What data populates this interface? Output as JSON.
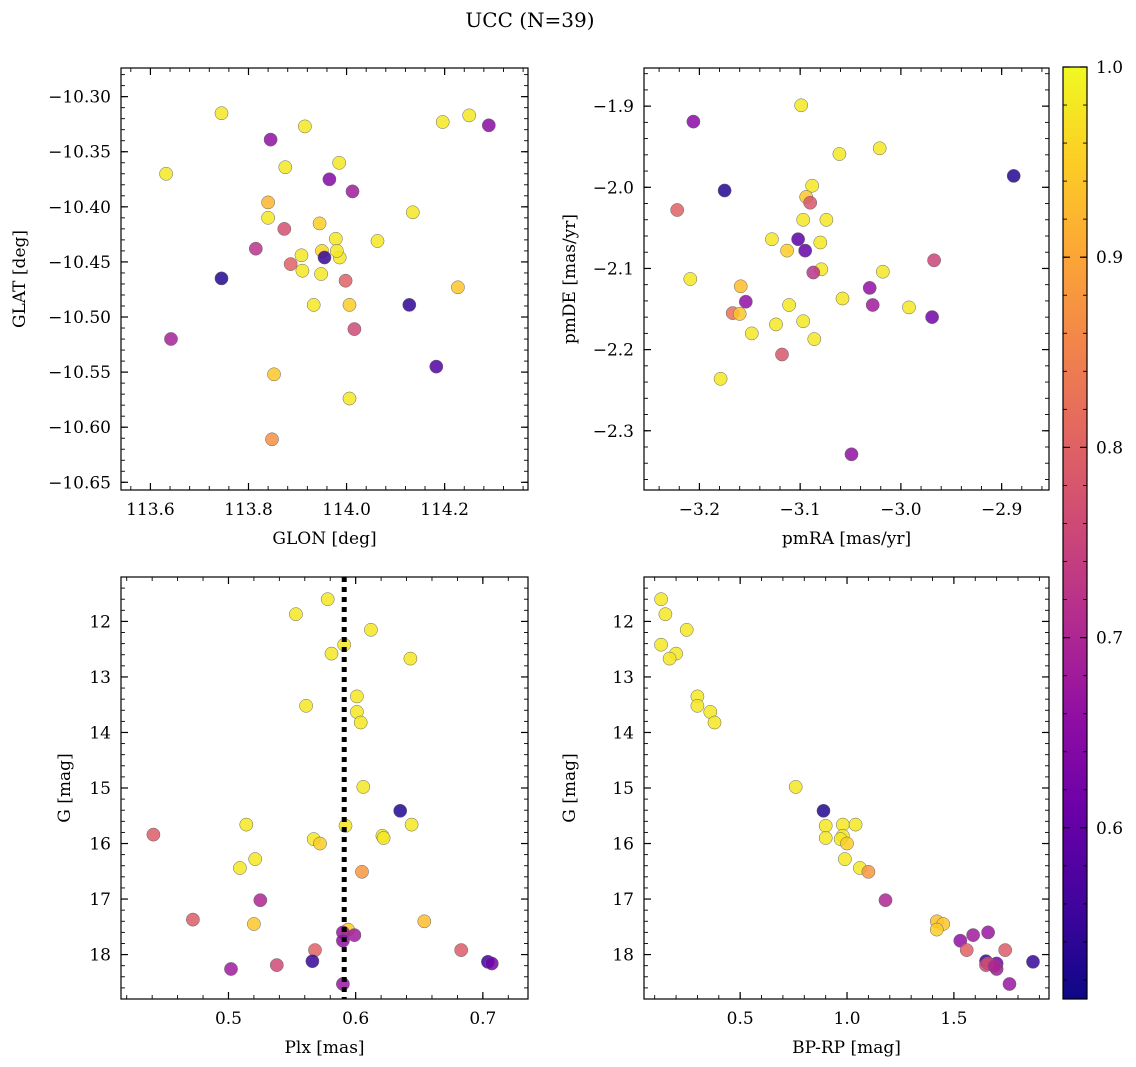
{
  "title": "UCC (N=39)",
  "colormap": {
    "name": "plasma",
    "min": 0.51,
    "max": 1.0,
    "ticks": [
      0.6,
      0.7,
      0.8,
      0.9,
      1.0
    ],
    "tick_labels": [
      "0.6",
      "0.7",
      "0.8",
      "0.9",
      "1.0"
    ]
  },
  "chart_data": [
    {
      "type": "scatter",
      "xlabel": "GLON [deg]",
      "ylabel": "GLAT [deg]",
      "xlim": [
        113.54,
        114.37
      ],
      "ylim": [
        -10.657,
        -10.274
      ],
      "y_inverted": false,
      "xticks": [
        113.6,
        113.8,
        114.0,
        114.2
      ],
      "xtick_labels": [
        "113.6",
        "113.8",
        "114.0",
        "114.2"
      ],
      "yticks": [
        -10.3,
        -10.35,
        -10.4,
        -10.45,
        -10.5,
        -10.55,
        -10.6,
        -10.65
      ],
      "ytick_labels": [
        "−10.30",
        "−10.35",
        "−10.40",
        "−10.45",
        "−10.50",
        "−10.55",
        "−10.60",
        "−10.65"
      ],
      "points": [
        {
          "x": 113.745,
          "y": -10.315,
          "c": 0.98
        },
        {
          "x": 113.845,
          "y": -10.339,
          "c": 0.66
        },
        {
          "x": 113.915,
          "y": -10.327,
          "c": 0.98
        },
        {
          "x": 114.196,
          "y": -10.323,
          "c": 0.98
        },
        {
          "x": 114.25,
          "y": -10.317,
          "c": 0.98
        },
        {
          "x": 114.29,
          "y": -10.326,
          "c": 0.65
        },
        {
          "x": 113.632,
          "y": -10.37,
          "c": 0.98
        },
        {
          "x": 113.875,
          "y": -10.364,
          "c": 0.98
        },
        {
          "x": 113.985,
          "y": -10.36,
          "c": 0.98
        },
        {
          "x": 113.965,
          "y": -10.375,
          "c": 0.64
        },
        {
          "x": 114.012,
          "y": -10.386,
          "c": 0.68
        },
        {
          "x": 113.84,
          "y": -10.396,
          "c": 0.92
        },
        {
          "x": 113.84,
          "y": -10.41,
          "c": 0.98
        },
        {
          "x": 113.873,
          "y": -10.42,
          "c": 0.77
        },
        {
          "x": 113.945,
          "y": -10.415,
          "c": 0.95
        },
        {
          "x": 114.135,
          "y": -10.405,
          "c": 0.98
        },
        {
          "x": 113.815,
          "y": -10.438,
          "c": 0.72
        },
        {
          "x": 113.978,
          "y": -10.429,
          "c": 0.98
        },
        {
          "x": 114.063,
          "y": -10.431,
          "c": 0.98
        },
        {
          "x": 113.908,
          "y": -10.444,
          "c": 0.98
        },
        {
          "x": 113.95,
          "y": -10.44,
          "c": 0.96
        },
        {
          "x": 113.955,
          "y": -10.446,
          "c": 0.55
        },
        {
          "x": 113.886,
          "y": -10.452,
          "c": 0.8
        },
        {
          "x": 113.986,
          "y": -10.446,
          "c": 0.98
        },
        {
          "x": 113.91,
          "y": -10.458,
          "c": 0.98
        },
        {
          "x": 113.948,
          "y": -10.461,
          "c": 0.98
        },
        {
          "x": 113.745,
          "y": -10.465,
          "c": 0.53
        },
        {
          "x": 113.998,
          "y": -10.467,
          "c": 0.8
        },
        {
          "x": 114.227,
          "y": -10.473,
          "c": 0.94
        },
        {
          "x": 113.933,
          "y": -10.489,
          "c": 0.98
        },
        {
          "x": 114.006,
          "y": -10.489,
          "c": 0.95
        },
        {
          "x": 114.128,
          "y": -10.489,
          "c": 0.54
        },
        {
          "x": 114.016,
          "y": -10.511,
          "c": 0.76
        },
        {
          "x": 113.642,
          "y": -10.52,
          "c": 0.69
        },
        {
          "x": 114.183,
          "y": -10.545,
          "c": 0.58
        },
        {
          "x": 113.852,
          "y": -10.552,
          "c": 0.94
        },
        {
          "x": 114.006,
          "y": -10.574,
          "c": 0.98
        },
        {
          "x": 113.848,
          "y": -10.611,
          "c": 0.87
        },
        {
          "x": 113.98,
          "y": -10.44,
          "c": 0.98
        }
      ]
    },
    {
      "type": "scatter",
      "xlabel": "pmRA [mas/yr]",
      "ylabel": "pmDE [mas/yr]",
      "xlim": [
        -3.255,
        -2.853
      ],
      "ylim": [
        -2.373,
        -1.853
      ],
      "y_inverted": false,
      "xticks": [
        -3.2,
        -3.1,
        -3.0,
        -2.9
      ],
      "xtick_labels": [
        "−3.2",
        "−3.1",
        "−3.0",
        "−2.9"
      ],
      "yticks": [
        -1.9,
        -2.0,
        -2.1,
        -2.2,
        -2.3
      ],
      "ytick_labels": [
        "−1.9",
        "−2.0",
        "−2.1",
        "−2.2",
        "−2.3"
      ],
      "points": [
        {
          "x": -3.206,
          "y": -1.919,
          "c": 0.65
        },
        {
          "x": -3.099,
          "y": -1.899,
          "c": 0.98
        },
        {
          "x": -3.061,
          "y": -1.959,
          "c": 0.98
        },
        {
          "x": -3.021,
          "y": -1.952,
          "c": 0.98
        },
        {
          "x": -2.888,
          "y": -1.986,
          "c": 0.53
        },
        {
          "x": -3.175,
          "y": -2.004,
          "c": 0.53
        },
        {
          "x": -3.088,
          "y": -1.998,
          "c": 0.98
        },
        {
          "x": -3.094,
          "y": -2.012,
          "c": 0.94
        },
        {
          "x": -3.09,
          "y": -2.019,
          "c": 0.78
        },
        {
          "x": -3.222,
          "y": -2.028,
          "c": 0.8
        },
        {
          "x": -3.097,
          "y": -2.04,
          "c": 0.98
        },
        {
          "x": -3.074,
          "y": -2.04,
          "c": 0.98
        },
        {
          "x": -3.128,
          "y": -2.064,
          "c": 0.98
        },
        {
          "x": -3.102,
          "y": -2.064,
          "c": 0.59
        },
        {
          "x": -3.08,
          "y": -2.068,
          "c": 0.98
        },
        {
          "x": -3.095,
          "y": -2.078,
          "c": 0.6
        },
        {
          "x": -3.113,
          "y": -2.078,
          "c": 0.95
        },
        {
          "x": -2.967,
          "y": -2.09,
          "c": 0.75
        },
        {
          "x": -3.079,
          "y": -2.101,
          "c": 0.98
        },
        {
          "x": -3.087,
          "y": -2.105,
          "c": 0.72
        },
        {
          "x": -3.018,
          "y": -2.104,
          "c": 0.98
        },
        {
          "x": -3.209,
          "y": -2.113,
          "c": 0.98
        },
        {
          "x": -3.159,
          "y": -2.122,
          "c": 0.93
        },
        {
          "x": -3.031,
          "y": -2.124,
          "c": 0.66
        },
        {
          "x": -3.058,
          "y": -2.137,
          "c": 0.98
        },
        {
          "x": -3.154,
          "y": -2.141,
          "c": 0.66
        },
        {
          "x": -3.111,
          "y": -2.145,
          "c": 0.98
        },
        {
          "x": -3.028,
          "y": -2.145,
          "c": 0.68
        },
        {
          "x": -2.992,
          "y": -2.148,
          "c": 0.98
        },
        {
          "x": -3.167,
          "y": -2.155,
          "c": 0.82
        },
        {
          "x": -3.16,
          "y": -2.156,
          "c": 0.94
        },
        {
          "x": -2.969,
          "y": -2.16,
          "c": 0.62
        },
        {
          "x": -3.124,
          "y": -2.169,
          "c": 0.98
        },
        {
          "x": -3.097,
          "y": -2.165,
          "c": 0.98
        },
        {
          "x": -3.148,
          "y": -2.18,
          "c": 0.98
        },
        {
          "x": -3.086,
          "y": -2.187,
          "c": 0.98
        },
        {
          "x": -3.118,
          "y": -2.206,
          "c": 0.78
        },
        {
          "x": -3.179,
          "y": -2.236,
          "c": 0.98
        },
        {
          "x": -3.049,
          "y": -2.329,
          "c": 0.66
        }
      ]
    },
    {
      "type": "scatter",
      "xlabel": "Plx [mas]",
      "ylabel": "G [mag]",
      "xlim": [
        0.4155,
        0.7355
      ],
      "ylim": [
        11.2,
        18.8
      ],
      "y_inverted": true,
      "vline": {
        "x": 0.591,
        "style": "dotted"
      },
      "xticks": [
        0.5,
        0.6,
        0.7
      ],
      "xtick_labels": [
        "0.5",
        "0.6",
        "0.7"
      ],
      "yticks": [
        12,
        13,
        14,
        15,
        16,
        17,
        18
      ],
      "ytick_labels": [
        "12",
        "13",
        "14",
        "15",
        "16",
        "17",
        "18"
      ],
      "points": [
        {
          "x": 0.578,
          "y": 11.6,
          "c": 0.98
        },
        {
          "x": 0.553,
          "y": 11.87,
          "c": 0.98
        },
        {
          "x": 0.612,
          "y": 12.15,
          "c": 0.98
        },
        {
          "x": 0.591,
          "y": 12.42,
          "c": 0.98
        },
        {
          "x": 0.581,
          "y": 12.58,
          "c": 0.98
        },
        {
          "x": 0.643,
          "y": 12.67,
          "c": 0.98
        },
        {
          "x": 0.601,
          "y": 13.35,
          "c": 0.98
        },
        {
          "x": 0.561,
          "y": 13.52,
          "c": 0.98
        },
        {
          "x": 0.601,
          "y": 13.63,
          "c": 0.98
        },
        {
          "x": 0.604,
          "y": 13.82,
          "c": 0.98
        },
        {
          "x": 0.606,
          "y": 14.98,
          "c": 0.98
        },
        {
          "x": 0.635,
          "y": 15.41,
          "c": 0.53
        },
        {
          "x": 0.514,
          "y": 15.66,
          "c": 0.98
        },
        {
          "x": 0.644,
          "y": 15.66,
          "c": 0.98
        },
        {
          "x": 0.592,
          "y": 15.68,
          "c": 0.98
        },
        {
          "x": 0.441,
          "y": 15.84,
          "c": 0.79
        },
        {
          "x": 0.621,
          "y": 15.86,
          "c": 0.98
        },
        {
          "x": 0.622,
          "y": 15.9,
          "c": 0.98
        },
        {
          "x": 0.567,
          "y": 15.92,
          "c": 0.98
        },
        {
          "x": 0.572,
          "y": 16.0,
          "c": 0.95
        },
        {
          "x": 0.521,
          "y": 16.28,
          "c": 0.98
        },
        {
          "x": 0.509,
          "y": 16.44,
          "c": 0.98
        },
        {
          "x": 0.605,
          "y": 16.51,
          "c": 0.88
        },
        {
          "x": 0.525,
          "y": 17.02,
          "c": 0.7
        },
        {
          "x": 0.472,
          "y": 17.37,
          "c": 0.79
        },
        {
          "x": 0.654,
          "y": 17.4,
          "c": 0.93
        },
        {
          "x": 0.52,
          "y": 17.45,
          "c": 0.94
        },
        {
          "x": 0.594,
          "y": 17.55,
          "c": 0.95
        },
        {
          "x": 0.59,
          "y": 17.6,
          "c": 0.67
        },
        {
          "x": 0.599,
          "y": 17.65,
          "c": 0.68
        },
        {
          "x": 0.59,
          "y": 17.75,
          "c": 0.66
        },
        {
          "x": 0.568,
          "y": 17.92,
          "c": 0.8
        },
        {
          "x": 0.683,
          "y": 17.92,
          "c": 0.79
        },
        {
          "x": 0.566,
          "y": 18.12,
          "c": 0.55
        },
        {
          "x": 0.704,
          "y": 18.13,
          "c": 0.55
        },
        {
          "x": 0.707,
          "y": 18.16,
          "c": 0.62
        },
        {
          "x": 0.538,
          "y": 18.19,
          "c": 0.76
        },
        {
          "x": 0.502,
          "y": 18.26,
          "c": 0.68
        },
        {
          "x": 0.59,
          "y": 18.53,
          "c": 0.67
        }
      ]
    },
    {
      "type": "scatter",
      "xlabel": "BP-RP [mag]",
      "ylabel": "G [mag]",
      "xlim": [
        0.05,
        1.945
      ],
      "ylim": [
        11.2,
        18.8
      ],
      "y_inverted": true,
      "xticks": [
        0.5,
        1.0,
        1.5
      ],
      "xtick_labels": [
        "0.5",
        "1.0",
        "1.5"
      ],
      "yticks": [
        12,
        13,
        14,
        15,
        16,
        17,
        18
      ],
      "ytick_labels": [
        "12",
        "13",
        "14",
        "15",
        "16",
        "17",
        "18"
      ],
      "points": [
        {
          "x": 0.13,
          "y": 11.6,
          "c": 0.98
        },
        {
          "x": 0.15,
          "y": 11.87,
          "c": 0.98
        },
        {
          "x": 0.25,
          "y": 12.15,
          "c": 0.98
        },
        {
          "x": 0.13,
          "y": 12.42,
          "c": 0.98
        },
        {
          "x": 0.2,
          "y": 12.58,
          "c": 0.98
        },
        {
          "x": 0.17,
          "y": 12.67,
          "c": 0.98
        },
        {
          "x": 0.3,
          "y": 13.35,
          "c": 0.98
        },
        {
          "x": 0.3,
          "y": 13.52,
          "c": 0.98
        },
        {
          "x": 0.36,
          "y": 13.63,
          "c": 0.98
        },
        {
          "x": 0.38,
          "y": 13.82,
          "c": 0.98
        },
        {
          "x": 0.76,
          "y": 14.98,
          "c": 0.98
        },
        {
          "x": 0.89,
          "y": 15.41,
          "c": 0.53
        },
        {
          "x": 0.9,
          "y": 15.68,
          "c": 0.98
        },
        {
          "x": 0.98,
          "y": 15.66,
          "c": 0.98
        },
        {
          "x": 1.04,
          "y": 15.66,
          "c": 0.98
        },
        {
          "x": 0.98,
          "y": 15.86,
          "c": 0.98
        },
        {
          "x": 0.9,
          "y": 15.9,
          "c": 0.98
        },
        {
          "x": 0.97,
          "y": 15.92,
          "c": 0.98
        },
        {
          "x": 1.0,
          "y": 16.0,
          "c": 0.95
        },
        {
          "x": 0.99,
          "y": 16.28,
          "c": 0.98
        },
        {
          "x": 1.06,
          "y": 16.44,
          "c": 0.98
        },
        {
          "x": 1.1,
          "y": 16.51,
          "c": 0.88
        },
        {
          "x": 1.18,
          "y": 17.02,
          "c": 0.7
        },
        {
          "x": 1.42,
          "y": 17.4,
          "c": 0.93
        },
        {
          "x": 1.45,
          "y": 17.45,
          "c": 0.94
        },
        {
          "x": 1.42,
          "y": 17.55,
          "c": 0.95
        },
        {
          "x": 1.66,
          "y": 17.6,
          "c": 0.67
        },
        {
          "x": 1.53,
          "y": 17.75,
          "c": 0.66
        },
        {
          "x": 1.59,
          "y": 17.65,
          "c": 0.68
        },
        {
          "x": 1.56,
          "y": 17.92,
          "c": 0.8
        },
        {
          "x": 1.74,
          "y": 17.92,
          "c": 0.79
        },
        {
          "x": 1.87,
          "y": 18.13,
          "c": 0.55
        },
        {
          "x": 1.65,
          "y": 18.12,
          "c": 0.55
        },
        {
          "x": 1.7,
          "y": 18.16,
          "c": 0.62
        },
        {
          "x": 1.65,
          "y": 18.19,
          "c": 0.76
        },
        {
          "x": 1.7,
          "y": 18.26,
          "c": 0.68
        },
        {
          "x": 1.76,
          "y": 18.53,
          "c": 0.67
        },
        {
          "x": 1.66,
          "y": 18.16,
          "c": 0.76
        },
        {
          "x": 1.69,
          "y": 18.21,
          "c": 0.7
        }
      ]
    }
  ]
}
